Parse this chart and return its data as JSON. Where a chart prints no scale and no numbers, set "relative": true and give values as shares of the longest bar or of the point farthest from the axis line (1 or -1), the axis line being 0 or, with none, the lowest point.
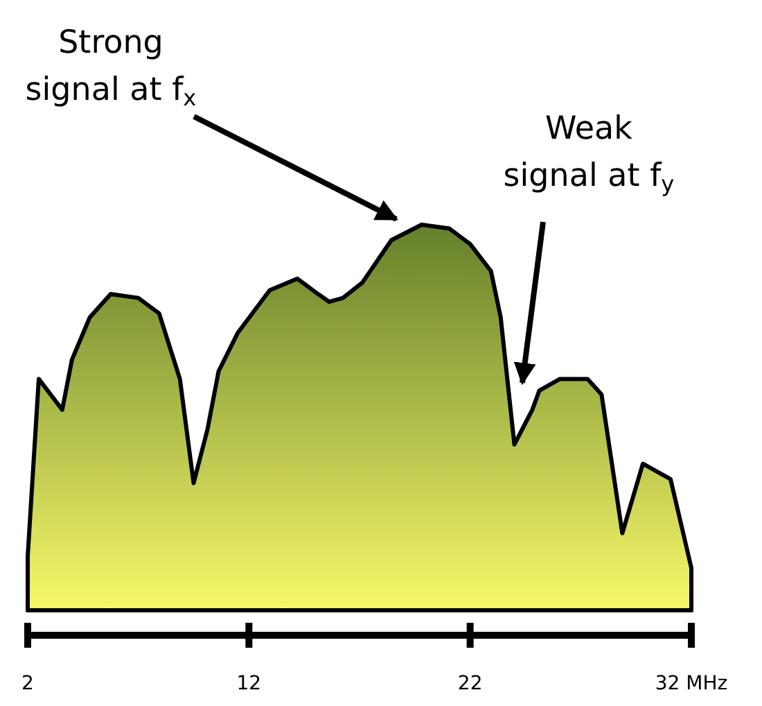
{
  "chart_data": {
    "type": "area",
    "relative": true,
    "color": "#7d9e35",
    "x": [
      2,
      2.5,
      3.56,
      4,
      4.81,
      5.75,
      7,
      7.94,
      8.88,
      9.5,
      10.13,
      10.63,
      11.5,
      12.94,
      14.19,
      15.13,
      15.63,
      16.25,
      17.13,
      18.44,
      19.81,
      21.06,
      22,
      22.94,
      23.38,
      24,
      24.81,
      25.13,
      26.06,
      27.31,
      27.94,
      28.88,
      29.81,
      31.06,
      32
    ],
    "values": [
      0.14,
      0.6,
      0.52,
      0.65,
      0.76,
      0.82,
      0.81,
      0.77,
      0.6,
      0.33,
      0.47,
      0.62,
      0.72,
      0.83,
      0.86,
      0.82,
      0.8,
      0.81,
      0.85,
      0.96,
      1.0,
      0.99,
      0.95,
      0.88,
      0.76,
      0.43,
      0.52,
      0.57,
      0.6,
      0.6,
      0.56,
      0.2,
      0.38,
      0.34,
      0.11
    ],
    "xlim": [
      2,
      32
    ],
    "xticks": [
      2,
      12,
      22,
      {
        "value": 32,
        "label": "32 MHz"
      }
    ],
    "annotations": [
      "Strong signal at f$_{x}$",
      "Weak signal at f$_{y}$"
    ]
  }
}
